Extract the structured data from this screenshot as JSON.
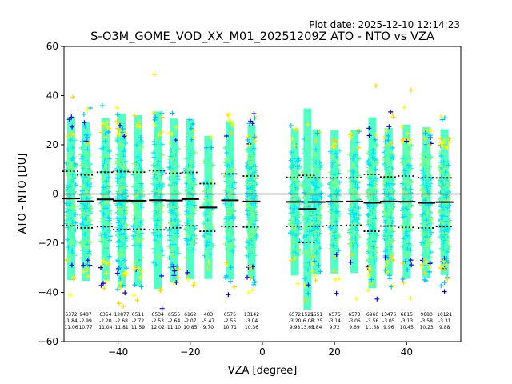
{
  "chart_data": {
    "type": "scatter",
    "title": "S-O3M_GOME_VOD_XX_M01_20251209Z ATO - NTO vs VZA",
    "plot_date": "Plot date: 2025-12-10 12:14:23",
    "xlabel": "VZA [degree]",
    "ylabel": "ATO - NTO [DU]",
    "xlim": [
      -55,
      55
    ],
    "ylim": [
      -60,
      60
    ],
    "xticks": [
      -40,
      -20,
      0,
      20,
      40
    ],
    "yticks": [
      -60,
      -40,
      -20,
      0,
      20,
      40,
      60
    ],
    "zero_line": 0,
    "marker": "+",
    "point_colors": [
      "#7fff7f",
      "#3fffbf",
      "#00e5ff",
      "#ffd700",
      "#ffff00",
      "#00bfff",
      "#0000ff"
    ],
    "bins": [
      {
        "center": -53.0,
        "count": 6372,
        "mean": -1.84,
        "std": 11.06
      },
      {
        "center": -49.0,
        "count": 9487,
        "mean": -2.99,
        "std": 10.77
      },
      {
        "center": -43.5,
        "count": 6354,
        "mean": -2.2,
        "std": 11.04
      },
      {
        "center": -39.0,
        "count": 12877,
        "mean": -2.68,
        "std": 11.81
      },
      {
        "center": -34.5,
        "count": 6511,
        "mean": -2.72,
        "std": 11.59
      },
      {
        "center": -29.0,
        "count": 6534,
        "mean": -2.53,
        "std": 12.02
      },
      {
        "center": -24.5,
        "count": 6555,
        "mean": -2.64,
        "std": 11.1
      },
      {
        "center": -20.0,
        "count": 6162,
        "mean": -2.07,
        "std": 10.85
      },
      {
        "center": -15.0,
        "count": 403,
        "mean": -5.47,
        "std": 9.7
      },
      {
        "center": -9.0,
        "count": 6575,
        "mean": -2.55,
        "std": 10.71
      },
      {
        "center": -3.0,
        "count": 13142,
        "mean": -3.04,
        "std": 10.36
      },
      {
        "center": 9.0,
        "count": 6572,
        "mean": -3.2,
        "std": 9.98
      },
      {
        "center": 12.5,
        "count": 1521,
        "mean": -6.08,
        "std": 13.63
      },
      {
        "center": 15.0,
        "count": 5551,
        "mean": -3.25,
        "std": 9.84
      },
      {
        "center": 20.0,
        "count": 6575,
        "mean": -3.14,
        "std": 9.72
      },
      {
        "center": 25.5,
        "count": 6573,
        "mean": -3.06,
        "std": 9.69
      },
      {
        "center": 30.5,
        "count": 6960,
        "mean": -3.56,
        "std": 11.58
      },
      {
        "center": 35.0,
        "count": 13476,
        "mean": -3.05,
        "std": 9.96
      },
      {
        "center": 40.0,
        "count": 6815,
        "mean": -3.13,
        "std": 10.45
      },
      {
        "center": 45.5,
        "count": 9880,
        "mean": -3.58,
        "std": 10.23
      },
      {
        "center": 50.5,
        "count": 10121,
        "mean": -3.31,
        "std": 9.88
      }
    ]
  }
}
